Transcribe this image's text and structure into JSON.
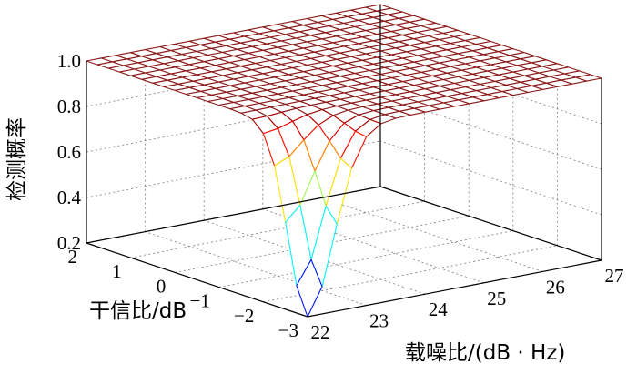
{
  "chart_data": {
    "type": "surface",
    "title": "",
    "xlabel": "载噪比/(dB · Hz)",
    "ylabel": "干信比/dB",
    "zlabel": "检测概率",
    "xlim": [
      22,
      27
    ],
    "ylim": [
      -3,
      2
    ],
    "zlim": [
      0.2,
      1.0
    ],
    "xticks": [
      "22",
      "23",
      "24",
      "25",
      "26",
      "27"
    ],
    "yticks": [
      "−3",
      "−2",
      "−1",
      "0",
      "1",
      "2"
    ],
    "zticks": [
      "0.2",
      "0.4",
      "0.6",
      "0.8",
      "1.0"
    ],
    "grid": true,
    "colormap": "jet",
    "mesh": {
      "x_points": 21,
      "y_points": 21
    },
    "surface_description": "Detection probability is ~1.0 over most of the grid; it drops sharply to a minimum of about 0.2 at carrier-to-noise ratio 22 dB-Hz and jamming-to-signal ratio -3 dB.",
    "min_point": {
      "x": 22,
      "y": -3,
      "z": 0.2
    },
    "plateau_value": 1.0
  }
}
